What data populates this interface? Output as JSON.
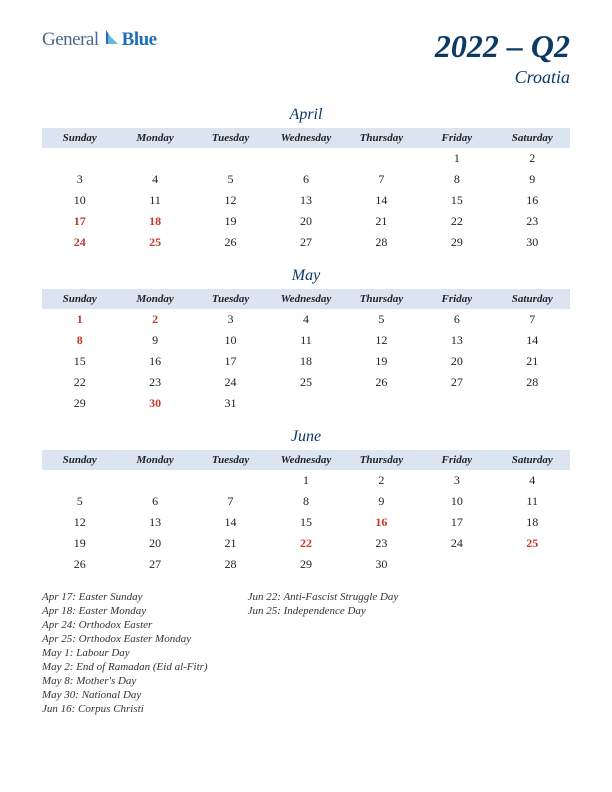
{
  "logo": {
    "part1": "General",
    "part2": "Blue"
  },
  "title": "2022 – Q2",
  "subtitle": "Croatia",
  "colors": {
    "header_bg": "#dbe5f1",
    "title_color": "#0b3a66",
    "holiday_color": "#c0392b",
    "text_color": "#222222",
    "logo_general": "#4a6a8a",
    "logo_blue": "#1f6fb8"
  },
  "day_headers": [
    "Sunday",
    "Monday",
    "Tuesday",
    "Wednesday",
    "Thursday",
    "Friday",
    "Saturday"
  ],
  "months": [
    {
      "name": "April",
      "weeks": [
        [
          "",
          "",
          "",
          "",
          "",
          "1",
          "2"
        ],
        [
          "3",
          "4",
          "5",
          "6",
          "7",
          "8",
          "9"
        ],
        [
          "10",
          "11",
          "12",
          "13",
          "14",
          "15",
          "16"
        ],
        [
          "17",
          "18",
          "19",
          "20",
          "21",
          "22",
          "23"
        ],
        [
          "24",
          "25",
          "26",
          "27",
          "28",
          "29",
          "30"
        ]
      ],
      "holidays_cells": [
        [
          3,
          0
        ],
        [
          3,
          1
        ],
        [
          4,
          0
        ],
        [
          4,
          1
        ]
      ]
    },
    {
      "name": "May",
      "weeks": [
        [
          "1",
          "2",
          "3",
          "4",
          "5",
          "6",
          "7"
        ],
        [
          "8",
          "9",
          "10",
          "11",
          "12",
          "13",
          "14"
        ],
        [
          "15",
          "16",
          "17",
          "18",
          "19",
          "20",
          "21"
        ],
        [
          "22",
          "23",
          "24",
          "25",
          "26",
          "27",
          "28"
        ],
        [
          "29",
          "30",
          "31",
          "",
          "",
          "",
          ""
        ]
      ],
      "holidays_cells": [
        [
          0,
          0
        ],
        [
          0,
          1
        ],
        [
          1,
          0
        ],
        [
          4,
          1
        ]
      ]
    },
    {
      "name": "June",
      "weeks": [
        [
          "",
          "",
          "",
          "1",
          "2",
          "3",
          "4"
        ],
        [
          "5",
          "6",
          "7",
          "8",
          "9",
          "10",
          "11"
        ],
        [
          "12",
          "13",
          "14",
          "15",
          "16",
          "17",
          "18"
        ],
        [
          "19",
          "20",
          "21",
          "22",
          "23",
          "24",
          "25"
        ],
        [
          "26",
          "27",
          "28",
          "29",
          "30",
          "",
          ""
        ]
      ],
      "holidays_cells": [
        [
          2,
          4
        ],
        [
          3,
          3
        ],
        [
          3,
          6
        ]
      ]
    }
  ],
  "holiday_list": {
    "col1": [
      "Apr 17: Easter Sunday",
      "Apr 18: Easter Monday",
      "Apr 24: Orthodox Easter",
      "Apr 25: Orthodox Easter Monday",
      "May 1: Labour Day",
      "May 2: End of Ramadan (Eid al-Fitr)",
      "May 8: Mother's Day",
      "May 30: National Day",
      "Jun 16: Corpus Christi"
    ],
    "col2": [
      "Jun 22: Anti-Fascist Struggle Day",
      "Jun 25: Independence Day"
    ]
  }
}
